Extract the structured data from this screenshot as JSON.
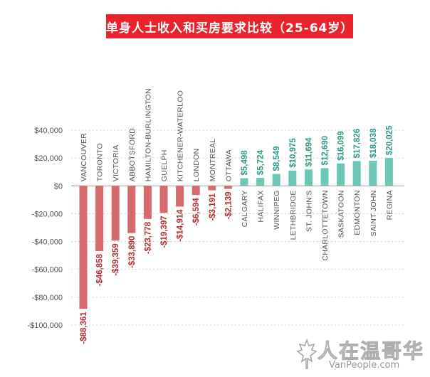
{
  "title": "单身人士收入和买房要求比较（25-64岁）",
  "colors": {
    "negative": "#d66b6d",
    "positive": "#6cc7b7",
    "negative_label": "#b32f32",
    "positive_label": "#2e9a86",
    "banner": "#e8232b"
  },
  "watermark": {
    "cn": "人在温哥华",
    "en": "VanPeople.com"
  },
  "chart_data": {
    "type": "bar",
    "title": "单身人士收入和买房要求比较（25-64岁）",
    "categories": [
      "VANCOUVER",
      "TORONTO",
      "VICTORIA",
      "ABBOTSFORD",
      "HAMILTON-BURLINGTON",
      "GUELPH",
      "KITCHENER-WATERLOO",
      "LONDON",
      "MONTREAL",
      "OTTAWA",
      "CALGARY",
      "HALIFAX",
      "WINNIPEG",
      "LETHBRIDGE",
      "ST. JOHN'S",
      "CHARLOTTETOWN",
      "SASKATOON",
      "EDMONTON",
      "SAINT JOHN",
      "REGINA"
    ],
    "values": [
      -88361,
      -46858,
      -39359,
      -33890,
      -23778,
      -19397,
      -14914,
      -6594,
      -3191,
      -2139,
      5498,
      5724,
      8549,
      10975,
      11694,
      12690,
      16099,
      17826,
      18038,
      20025
    ],
    "value_labels": [
      "-$88,361",
      "-$46,858",
      "-$39,359",
      "-$33,890",
      "-$23,778",
      "-$19,397",
      "-$14,914",
      "-$6,594",
      "-$3,191",
      "-$2,139",
      "$5,498",
      "$5,724",
      "$8,549",
      "$10,975",
      "$11,694",
      "$12,690",
      "$16,099",
      "$17,826",
      "$18,038",
      "$20,025"
    ],
    "yticks": [
      40000,
      20000,
      0,
      -20000,
      -40000,
      -60000,
      -80000,
      -100000
    ],
    "ytick_labels": [
      "$40,000",
      "$20,000",
      "$0",
      "-$20,000",
      "-$40,000",
      "-$60,000",
      "-$80,000",
      "-$100,000"
    ],
    "ylim": [
      -100000,
      40000
    ],
    "grid": true,
    "xlabel": "",
    "ylabel": ""
  }
}
